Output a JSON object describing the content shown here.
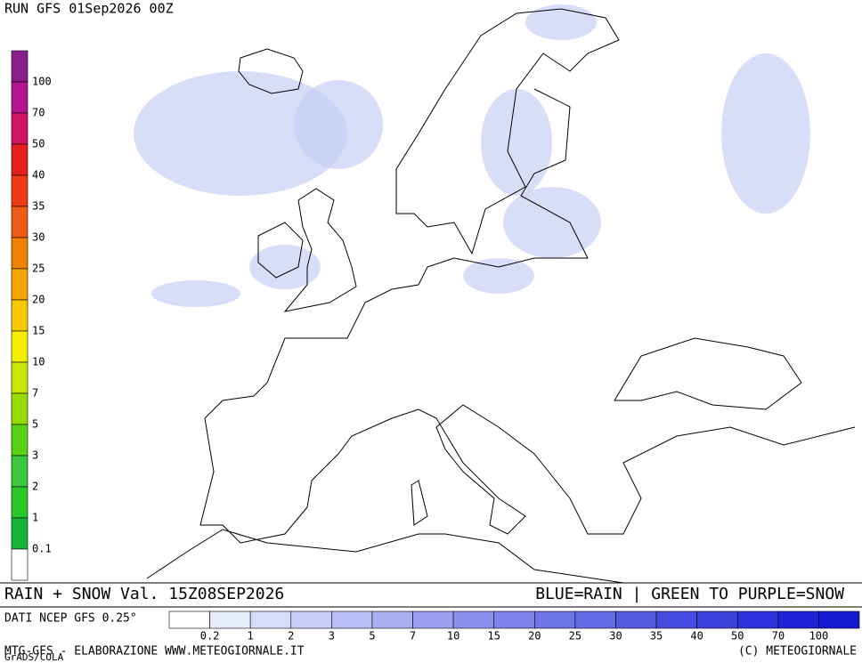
{
  "header": {
    "run": "RUN GFS 01Sep2026 00Z"
  },
  "snow_scale": {
    "labels": [
      "100",
      "70",
      "50",
      "40",
      "35",
      "30",
      "25",
      "20",
      "15",
      "10",
      "7",
      "5",
      "3",
      "2",
      "1",
      "0.1"
    ],
    "colors": [
      "#8c1e8c",
      "#b4148c",
      "#d21464",
      "#e61e1e",
      "#f03c14",
      "#f05a14",
      "#f08200",
      "#f5a500",
      "#f5c800",
      "#f5f000",
      "#c8e600",
      "#96dc00",
      "#5ad214",
      "#3cc83c",
      "#28c828",
      "#14b43c",
      "#ffffff"
    ]
  },
  "rain_scale": {
    "labels": [
      "0.2",
      "1",
      "2",
      "3",
      "5",
      "7",
      "10",
      "15",
      "20",
      "25",
      "30",
      "35",
      "40",
      "50",
      "70",
      "100"
    ],
    "colors": [
      "#ffffff",
      "#e6ebfa",
      "#d7dcfa",
      "#c8cdf5",
      "#b9bef5",
      "#aaaff0",
      "#9ba0f0",
      "#8c91eb",
      "#7d82eb",
      "#6e73e6",
      "#6469e6",
      "#555ae1",
      "#464be1",
      "#3c41dc",
      "#2d32dc",
      "#1e23d7",
      "#1419d2"
    ]
  },
  "footer": {
    "title": "RAIN + SNOW Val. 15Z08SEP2026",
    "legend_note": "BLUE=RAIN | GREEN TO PURPLE=SNOW",
    "source": "DATI NCEP GFS 0.25°",
    "credit_left": "MTG-GFS - ELABORAZIONE WWW.METEOGIORNALE.IT",
    "credit_right": "(C) METEOGIORNALE",
    "software": "GrADS/COLA"
  }
}
